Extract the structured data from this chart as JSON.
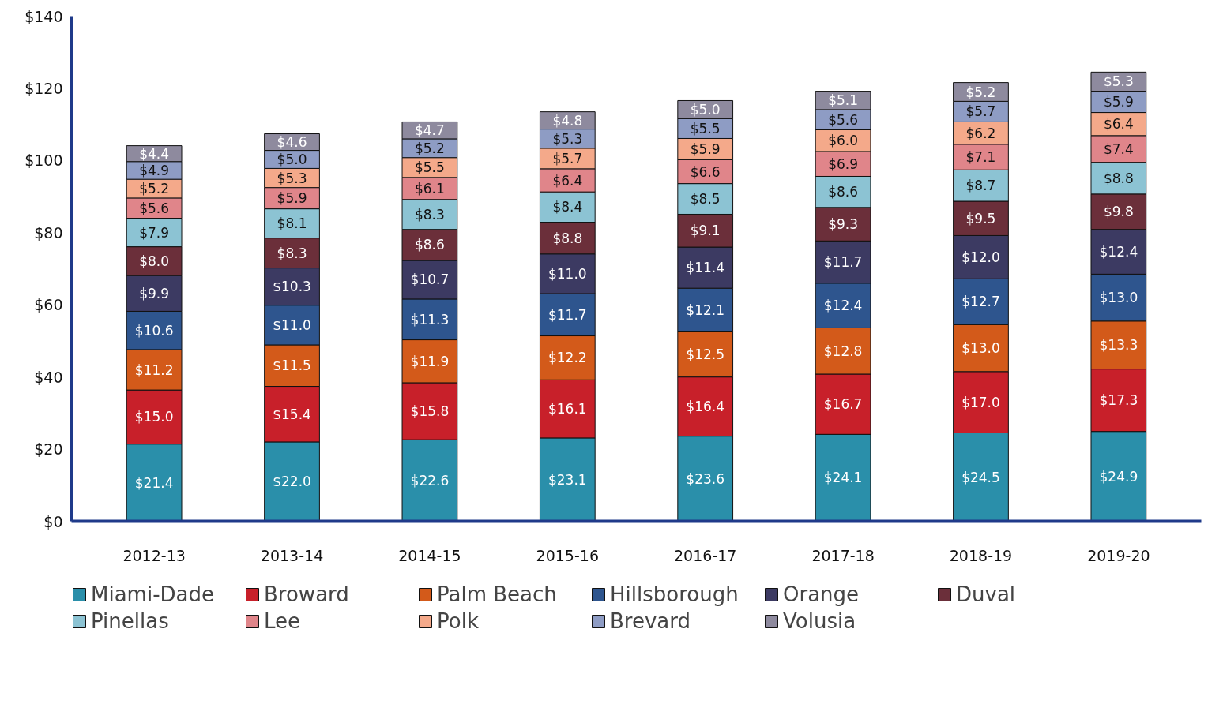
{
  "chart_data": {
    "type": "bar",
    "stacked": true,
    "categories": [
      "2012-13",
      "2013-14",
      "2014-15",
      "2015-16",
      "2016-17",
      "2017-18",
      "2018-19",
      "2019-20"
    ],
    "ylim": [
      0,
      140
    ],
    "yticks": [
      {
        "value": 0,
        "label": "$0"
      },
      {
        "value": 20,
        "label": "$20"
      },
      {
        "value": 40,
        "label": "$40"
      },
      {
        "value": 60,
        "label": "$60"
      },
      {
        "value": 80,
        "label": "$80"
      },
      {
        "value": 100,
        "label": "$100"
      },
      {
        "value": 120,
        "label": "$120"
      },
      {
        "value": 140,
        "label": "$140"
      }
    ],
    "grid": false,
    "legend": "bottom",
    "series": [
      {
        "name": "Miami-Dade",
        "color": "#2a8faa",
        "values": [
          21.4,
          22.0,
          22.6,
          23.1,
          23.6,
          24.1,
          24.5,
          24.9
        ],
        "value_labels": [
          "$21.4",
          "$22.0",
          "$22.6",
          "$23.1",
          "$23.6",
          "$24.1",
          "$24.5",
          "$24.9"
        ]
      },
      {
        "name": "Broward",
        "color": "#c8202a",
        "values": [
          15.0,
          15.4,
          15.8,
          16.1,
          16.4,
          16.7,
          17.0,
          17.3
        ],
        "value_labels": [
          "$15.0",
          "$15.4",
          "$15.8",
          "$16.1",
          "$16.4",
          "$16.7",
          "$17.0",
          "$17.3"
        ]
      },
      {
        "name": "Palm Beach",
        "color": "#d35a1a",
        "values": [
          11.2,
          11.5,
          11.9,
          12.2,
          12.5,
          12.8,
          13.0,
          13.3
        ],
        "value_labels": [
          "$11.2",
          "$11.5",
          "$11.9",
          "$12.2",
          "$12.5",
          "$12.8",
          "$13.0",
          "$13.3"
        ]
      },
      {
        "name": "Hillsborough",
        "color": "#2e558e",
        "values": [
          10.6,
          11.0,
          11.3,
          11.7,
          12.1,
          12.4,
          12.7,
          13.0
        ],
        "value_labels": [
          "$10.6",
          "$11.0",
          "$11.3",
          "$11.7",
          "$12.1",
          "$12.4",
          "$12.7",
          "$13.0"
        ]
      },
      {
        "name": "Orange",
        "color": "#3c3a62",
        "values": [
          9.9,
          10.3,
          10.7,
          11.0,
          11.4,
          11.7,
          12.0,
          12.4
        ],
        "value_labels": [
          "$9.9",
          "$10.3",
          "$10.7",
          "$11.0",
          "$11.4",
          "$11.7",
          "$12.0",
          "$12.4"
        ]
      },
      {
        "name": "Duval",
        "color": "#6b2f3a",
        "values": [
          8.0,
          8.3,
          8.6,
          8.8,
          9.1,
          9.3,
          9.5,
          9.8
        ],
        "value_labels": [
          "$8.0",
          "$8.3",
          "$8.6",
          "$8.8",
          "$9.1",
          "$9.3",
          "$9.5",
          "$9.8"
        ]
      },
      {
        "name": "Pinellas",
        "color": "#8cc3d3",
        "values": [
          7.9,
          8.1,
          8.3,
          8.4,
          8.5,
          8.6,
          8.7,
          8.8
        ],
        "value_labels": [
          "$7.9",
          "$8.1",
          "$8.3",
          "$8.4",
          "$8.5",
          "$8.6",
          "$8.7",
          "$8.8"
        ]
      },
      {
        "name": "Lee",
        "color": "#e0858a",
        "values": [
          5.6,
          5.9,
          6.1,
          6.4,
          6.6,
          6.9,
          7.1,
          7.4
        ],
        "value_labels": [
          "$5.6",
          "$5.9",
          "$6.1",
          "$6.4",
          "$6.6",
          "$6.9",
          "$7.1",
          "$7.4"
        ]
      },
      {
        "name": "Polk",
        "color": "#f4a98a",
        "values": [
          5.2,
          5.3,
          5.5,
          5.7,
          5.9,
          6.0,
          6.2,
          6.4
        ],
        "value_labels": [
          "$5.2",
          "$5.3",
          "$5.5",
          "$5.7",
          "$5.9",
          "$6.0",
          "$6.2",
          "$6.4"
        ]
      },
      {
        "name": "Brevard",
        "color": "#8e9cc4",
        "values": [
          4.9,
          5.0,
          5.2,
          5.3,
          5.5,
          5.6,
          5.7,
          5.9
        ],
        "value_labels": [
          "$4.9",
          "$5.0",
          "$5.2",
          "$5.3",
          "$5.5",
          "$5.6",
          "$5.7",
          "$5.9"
        ]
      },
      {
        "name": "Volusia",
        "color": "#8e8a9e",
        "values": [
          4.4,
          4.6,
          4.7,
          4.8,
          5.0,
          5.1,
          5.2,
          5.3
        ],
        "value_labels": [
          "$4.4",
          "$4.6",
          "$4.7",
          "$4.8",
          "$5.0",
          "$5.1",
          "$5.2",
          "$5.3"
        ]
      }
    ]
  }
}
